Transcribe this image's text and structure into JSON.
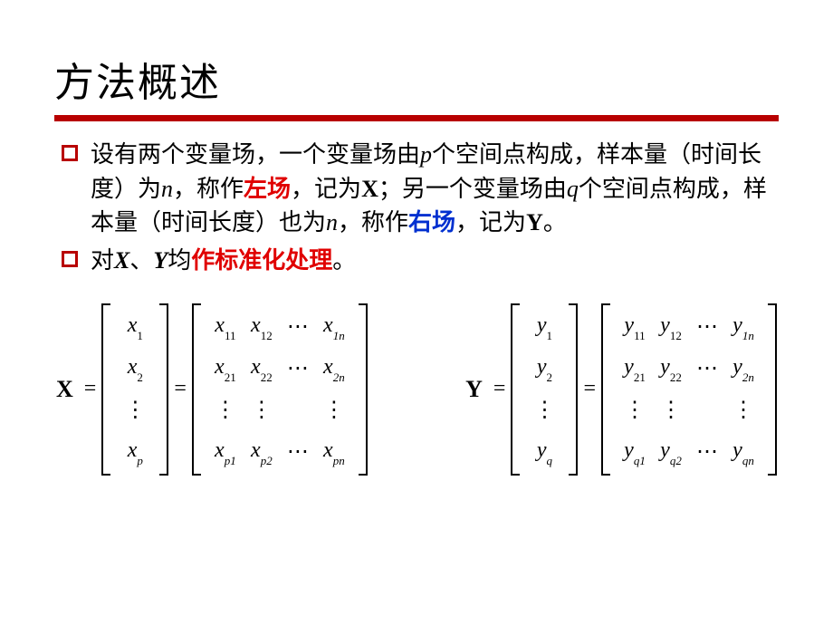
{
  "title": "方法概述",
  "bullets": {
    "b1": {
      "seg1": "设有两个变量场，一个变量场由",
      "p": "p",
      "seg2": "个空间点构成，样本量（时间长度）为",
      "n1": "n",
      "seg3": "，称作",
      "left_field": "左场",
      "seg4": "，记为",
      "X": "X",
      "seg5": "；另一个变量场由",
      "q": "q",
      "seg6": "个空间点构成，样本量（时间长度）也为",
      "n2": "n",
      "seg7": "，称作",
      "right_field": "右场",
      "seg8": "，记为",
      "Y": "Y",
      "seg9": "。"
    },
    "b2": {
      "seg1": "对",
      "X": "X",
      "sep": "、",
      "Y": "Y",
      "seg2": "均",
      "std": "作标准化处理",
      "seg3": "。"
    }
  },
  "formulas": {
    "X": {
      "lhs": "X",
      "vec": [
        "x₁",
        "x₂",
        "⋮",
        "x_p"
      ],
      "vec_raw": {
        "r1": "x",
        "s1": "1",
        "r2": "x",
        "s2": "2",
        "dots": "⋮",
        "rp": "x",
        "sp": "p"
      },
      "mat": {
        "r1": {
          "c1v": "x",
          "c1s": "11",
          "c2v": "x",
          "c2s": "12",
          "dots": "⋯",
          "c4v": "x",
          "c4s": "1n"
        },
        "r2": {
          "c1v": "x",
          "c1s": "21",
          "c2v": "x",
          "c2s": "22",
          "dots": "⋯",
          "c4v": "x",
          "c4s": "2n"
        },
        "r3": {
          "c1": "⋮",
          "c2": "⋮",
          "c3": " ",
          "c4": "⋮"
        },
        "r4": {
          "c1v": "x",
          "c1s": "p1",
          "c2v": "x",
          "c2s": "p2",
          "dots": "⋯",
          "c4v": "x",
          "c4s": "pn"
        }
      }
    },
    "Y": {
      "lhs": "Y",
      "vec_raw": {
        "r1": "y",
        "s1": "1",
        "r2": "y",
        "s2": "2",
        "dots": "⋮",
        "rp": "y",
        "sp": "q"
      },
      "mat": {
        "r1": {
          "c1v": "y",
          "c1s": "11",
          "c2v": "y",
          "c2s": "12",
          "dots": "⋯",
          "c4v": "y",
          "c4s": "1n"
        },
        "r2": {
          "c1v": "y",
          "c1s": "21",
          "c2v": "y",
          "c2s": "22",
          "dots": "⋯",
          "c4v": "y",
          "c4s": "2n"
        },
        "r3": {
          "c1": "⋮",
          "c2": "⋮",
          "c3": " ",
          "c4": "⋮"
        },
        "r4": {
          "c1v": "y",
          "c1s": "q1",
          "c2v": "y",
          "c2s": "q2",
          "dots": "⋯",
          "c4v": "y",
          "c4s": "qn"
        }
      }
    },
    "eq": "="
  },
  "colors": {
    "accent": "#b80000",
    "red_text": "#e00000",
    "blue_text": "#0030d0",
    "text": "#000000",
    "background": "#ffffff"
  },
  "typography": {
    "title_fontsize": 44,
    "body_fontsize": 26,
    "formula_fontsize": 24
  }
}
